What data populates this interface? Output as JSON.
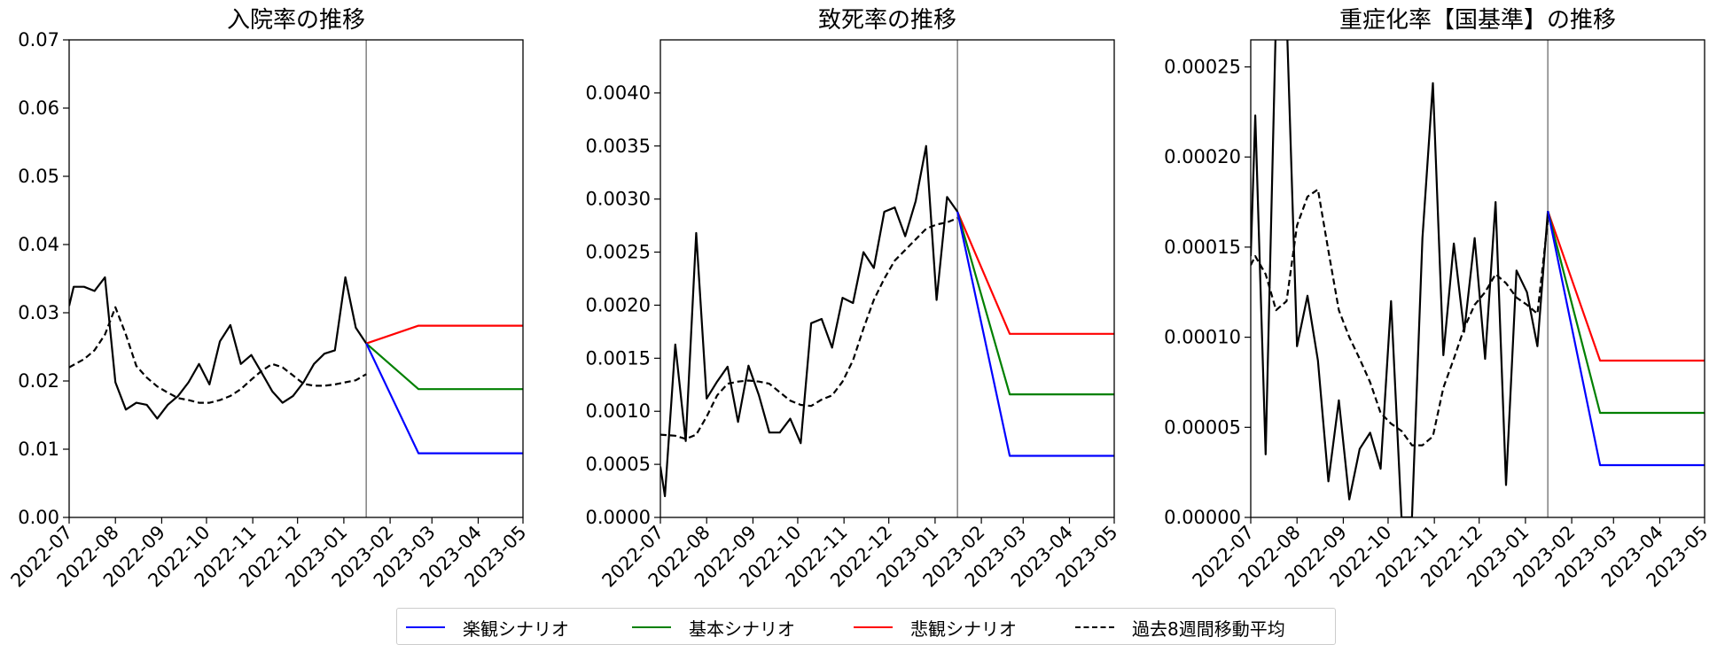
{
  "chart_data": [
    {
      "type": "line",
      "title": "入院率の推移",
      "ylim": [
        0,
        0.07
      ],
      "yticks": [
        "0.00",
        "0.01",
        "0.02",
        "0.03",
        "0.04",
        "0.05",
        "0.06",
        "0.07"
      ],
      "xlim": [
        "2022-07-01",
        "2023-05-01"
      ],
      "xticks": [
        "2022-07",
        "2022-08",
        "2022-09",
        "2022-10",
        "2022-11",
        "2022-12",
        "2023-01",
        "2023-02",
        "2023-03",
        "2023-04",
        "2023-05"
      ],
      "vline": "2023-01-16",
      "grid": false,
      "series": [
        {
          "key": "actual",
          "style": "solid",
          "color": "#000000",
          "x": [
            "2022-07-01",
            "2022-07-04",
            "2022-07-11",
            "2022-07-18",
            "2022-07-25",
            "2022-08-01",
            "2022-08-08",
            "2022-08-15",
            "2022-08-22",
            "2022-08-29",
            "2022-09-05",
            "2022-09-12",
            "2022-09-19",
            "2022-09-26",
            "2022-10-03",
            "2022-10-10",
            "2022-10-17",
            "2022-10-24",
            "2022-10-31",
            "2022-11-07",
            "2022-11-14",
            "2022-11-21",
            "2022-11-28",
            "2022-12-05",
            "2022-12-12",
            "2022-12-19",
            "2022-12-26",
            "2023-01-02",
            "2023-01-09",
            "2023-01-16"
          ],
          "y": [
            0.031,
            0.0338,
            0.0338,
            0.0332,
            0.0352,
            0.0198,
            0.0158,
            0.0168,
            0.0165,
            0.0145,
            0.0165,
            0.0178,
            0.0198,
            0.0225,
            0.0195,
            0.0258,
            0.0282,
            0.0225,
            0.0238,
            0.0212,
            0.0185,
            0.0168,
            0.0178,
            0.0198,
            0.0225,
            0.024,
            0.0245,
            0.0352,
            0.0278,
            0.0255
          ]
        },
        {
          "key": "moving_average",
          "style": "dashed",
          "color": "#000000",
          "x": [
            "2022-07-01",
            "2022-07-11",
            "2022-07-18",
            "2022-07-25",
            "2022-08-01",
            "2022-08-08",
            "2022-08-15",
            "2022-08-22",
            "2022-08-29",
            "2022-09-05",
            "2022-09-12",
            "2022-09-19",
            "2022-09-26",
            "2022-10-03",
            "2022-10-10",
            "2022-10-17",
            "2022-10-24",
            "2022-10-31",
            "2022-11-07",
            "2022-11-14",
            "2022-11-21",
            "2022-11-28",
            "2022-12-05",
            "2022-12-12",
            "2022-12-19",
            "2022-12-26",
            "2023-01-02",
            "2023-01-09",
            "2023-01-16"
          ],
          "y": [
            0.022,
            0.0232,
            0.0245,
            0.0268,
            0.0308,
            0.0268,
            0.0222,
            0.0205,
            0.0192,
            0.0183,
            0.0175,
            0.0172,
            0.0168,
            0.0168,
            0.0172,
            0.0178,
            0.0188,
            0.0202,
            0.0215,
            0.0225,
            0.022,
            0.0208,
            0.0196,
            0.0193,
            0.0193,
            0.0195,
            0.0198,
            0.0201,
            0.021
          ]
        },
        {
          "key": "pessimistic",
          "style": "solid",
          "color": "#ff0000",
          "x": [
            "2023-01-16",
            "2023-02-20",
            "2023-05-01"
          ],
          "y": [
            0.0255,
            0.0281,
            0.0281
          ]
        },
        {
          "key": "baseline",
          "style": "solid",
          "color": "#008000",
          "x": [
            "2023-01-16",
            "2023-02-20",
            "2023-05-01"
          ],
          "y": [
            0.0255,
            0.0188,
            0.0188
          ]
        },
        {
          "key": "optimistic",
          "style": "solid",
          "color": "#0000ff",
          "x": [
            "2023-01-16",
            "2023-02-20",
            "2023-05-01"
          ],
          "y": [
            0.0255,
            0.0094,
            0.0094
          ]
        }
      ]
    },
    {
      "type": "line",
      "title": "致死率の推移",
      "ylim": [
        0,
        0.0045
      ],
      "yticks": [
        "0.0000",
        "0.0005",
        "0.0010",
        "0.0015",
        "0.0020",
        "0.0025",
        "0.0030",
        "0.0035",
        "0.0040"
      ],
      "xlim": [
        "2022-07-01",
        "2023-05-01"
      ],
      "xticks": [
        "2022-07",
        "2022-08",
        "2022-09",
        "2022-10",
        "2022-11",
        "2022-12",
        "2023-01",
        "2023-02",
        "2023-03",
        "2023-04",
        "2023-05"
      ],
      "vline": "2023-01-16",
      "grid": false,
      "series": [
        {
          "key": "actual",
          "style": "solid",
          "color": "#000000",
          "x": [
            "2022-07-01",
            "2022-07-04",
            "2022-07-11",
            "2022-07-18",
            "2022-07-25",
            "2022-08-01",
            "2022-08-08",
            "2022-08-15",
            "2022-08-22",
            "2022-08-29",
            "2022-09-05",
            "2022-09-12",
            "2022-09-19",
            "2022-09-26",
            "2022-10-03",
            "2022-10-10",
            "2022-10-17",
            "2022-10-24",
            "2022-10-31",
            "2022-11-07",
            "2022-11-14",
            "2022-11-21",
            "2022-11-28",
            "2022-12-05",
            "2022-12-12",
            "2022-12-19",
            "2022-12-26",
            "2023-01-02",
            "2023-01-09",
            "2023-01-16"
          ],
          "y": [
            0.00048,
            0.0002,
            0.00163,
            0.00072,
            0.00268,
            0.00112,
            0.00128,
            0.00142,
            0.0009,
            0.00143,
            0.00115,
            0.0008,
            0.0008,
            0.00093,
            0.0007,
            0.00183,
            0.00187,
            0.0016,
            0.00207,
            0.00202,
            0.0025,
            0.00235,
            0.00288,
            0.00292,
            0.00265,
            0.00298,
            0.0035,
            0.00205,
            0.00302,
            0.00288
          ]
        },
        {
          "key": "moving_average",
          "style": "dashed",
          "color": "#000000",
          "x": [
            "2022-07-01",
            "2022-07-11",
            "2022-07-18",
            "2022-07-25",
            "2022-08-01",
            "2022-08-08",
            "2022-08-15",
            "2022-08-22",
            "2022-08-29",
            "2022-09-05",
            "2022-09-12",
            "2022-09-19",
            "2022-09-26",
            "2022-10-03",
            "2022-10-10",
            "2022-10-17",
            "2022-10-24",
            "2022-10-31",
            "2022-11-07",
            "2022-11-14",
            "2022-11-21",
            "2022-11-28",
            "2022-12-05",
            "2022-12-12",
            "2022-12-19",
            "2022-12-26",
            "2023-01-02",
            "2023-01-09",
            "2023-01-16"
          ],
          "y": [
            0.00078,
            0.00077,
            0.00074,
            0.00078,
            0.00095,
            0.00115,
            0.00126,
            0.00128,
            0.00129,
            0.00128,
            0.00126,
            0.00118,
            0.0011,
            0.00106,
            0.00105,
            0.00111,
            0.00115,
            0.00128,
            0.00148,
            0.00178,
            0.00205,
            0.00225,
            0.00242,
            0.00252,
            0.00262,
            0.00272,
            0.00276,
            0.00278,
            0.00282
          ]
        },
        {
          "key": "pessimistic",
          "style": "solid",
          "color": "#ff0000",
          "x": [
            "2023-01-16",
            "2023-02-20",
            "2023-05-01"
          ],
          "y": [
            0.00288,
            0.00173,
            0.00173
          ]
        },
        {
          "key": "baseline",
          "style": "solid",
          "color": "#008000",
          "x": [
            "2023-01-16",
            "2023-02-20",
            "2023-05-01"
          ],
          "y": [
            0.00288,
            0.00116,
            0.00116
          ]
        },
        {
          "key": "optimistic",
          "style": "solid",
          "color": "#0000ff",
          "x": [
            "2023-01-16",
            "2023-02-20",
            "2023-05-01"
          ],
          "y": [
            0.00288,
            0.00058,
            0.00058
          ]
        }
      ]
    },
    {
      "type": "line",
      "title": "重症化率【国基準】の推移",
      "ylim": [
        0,
        0.000265
      ],
      "yticks": [
        "0.00000",
        "0.00005",
        "0.00010",
        "0.00015",
        "0.00020",
        "0.00025"
      ],
      "xlim": [
        "2022-07-01",
        "2023-05-01"
      ],
      "xticks": [
        "2022-07",
        "2022-08",
        "2022-09",
        "2022-10",
        "2022-11",
        "2022-12",
        "2023-01",
        "2023-02",
        "2023-03",
        "2023-04",
        "2023-05"
      ],
      "vline": "2023-01-16",
      "grid": false,
      "series": [
        {
          "key": "actual",
          "style": "solid",
          "color": "#000000",
          "x": [
            "2022-07-01",
            "2022-07-04",
            "2022-07-11",
            "2022-07-18",
            "2022-07-25",
            "2022-08-01",
            "2022-08-08",
            "2022-08-15",
            "2022-08-22",
            "2022-08-29",
            "2022-09-05",
            "2022-09-12",
            "2022-09-19",
            "2022-09-26",
            "2022-10-03",
            "2022-10-10",
            "2022-10-17",
            "2022-10-24",
            "2022-10-31",
            "2022-11-07",
            "2022-11-14",
            "2022-11-21",
            "2022-11-28",
            "2022-12-05",
            "2022-12-12",
            "2022-12-19",
            "2022-12-26",
            "2023-01-02",
            "2023-01-09",
            "2023-01-16"
          ],
          "y": [
            0.000145,
            0.000223,
            3.5e-05,
            0.00028,
            0.00028,
            9.5e-05,
            0.000123,
            8.7e-05,
            2e-05,
            6.5e-05,
            1e-05,
            3.8e-05,
            4.7e-05,
            2.7e-05,
            0.00012,
            0.0,
            0.0,
            0.000155,
            0.000241,
            9e-05,
            0.000152,
            0.000103,
            0.000155,
            8.8e-05,
            0.000175,
            1.8e-05,
            0.000137,
            0.000125,
            9.5e-05,
            0.00017
          ]
        },
        {
          "key": "moving_average",
          "style": "dashed",
          "color": "#000000",
          "x": [
            "2022-07-01",
            "2022-07-04",
            "2022-07-11",
            "2022-07-18",
            "2022-07-25",
            "2022-08-01",
            "2022-08-08",
            "2022-08-15",
            "2022-08-22",
            "2022-08-29",
            "2022-09-05",
            "2022-09-12",
            "2022-09-19",
            "2022-09-26",
            "2022-10-03",
            "2022-10-10",
            "2022-10-17",
            "2022-10-24",
            "2022-10-31",
            "2022-11-07",
            "2022-11-14",
            "2022-11-21",
            "2022-11-28",
            "2022-12-05",
            "2022-12-12",
            "2022-12-19",
            "2022-12-26",
            "2023-01-02",
            "2023-01-09",
            "2023-01-16"
          ],
          "y": [
            0.00014,
            0.000145,
            0.000135,
            0.000115,
            0.00012,
            0.000162,
            0.000178,
            0.000182,
            0.000148,
            0.000115,
            0.0001,
            8.8e-05,
            7.5e-05,
            5.8e-05,
            5.2e-05,
            4.8e-05,
            4e-05,
            4e-05,
            4.5e-05,
            7.2e-05,
            8.8e-05,
            0.000105,
            0.000118,
            0.000125,
            0.000135,
            0.00013,
            0.000122,
            0.000118,
            0.000113,
            0.000165
          ]
        },
        {
          "key": "pessimistic",
          "style": "solid",
          "color": "#ff0000",
          "x": [
            "2023-01-16",
            "2023-02-20",
            "2023-05-01"
          ],
          "y": [
            0.00017,
            8.7e-05,
            8.7e-05
          ]
        },
        {
          "key": "baseline",
          "style": "solid",
          "color": "#008000",
          "x": [
            "2023-01-16",
            "2023-02-20",
            "2023-05-01"
          ],
          "y": [
            0.00017,
            5.8e-05,
            5.8e-05
          ]
        },
        {
          "key": "optimistic",
          "style": "solid",
          "color": "#0000ff",
          "x": [
            "2023-01-16",
            "2023-02-20",
            "2023-05-01"
          ],
          "y": [
            0.00017,
            2.9e-05,
            2.9e-05
          ]
        }
      ]
    }
  ],
  "legend": {
    "placement": "bottom-center",
    "items": [
      {
        "label": "楽観シナリオ",
        "color": "#0000ff",
        "style": "solid"
      },
      {
        "label": "基本シナリオ",
        "color": "#008000",
        "style": "solid"
      },
      {
        "label": "悲観シナリオ",
        "color": "#ff0000",
        "style": "solid"
      },
      {
        "label": "過去8週間移動平均",
        "color": "#000000",
        "style": "dashed"
      }
    ]
  },
  "colors": {
    "optimistic": "#0000ff",
    "baseline": "#008000",
    "pessimistic": "#ff0000",
    "actual": "#000000",
    "vline": "#808080"
  }
}
